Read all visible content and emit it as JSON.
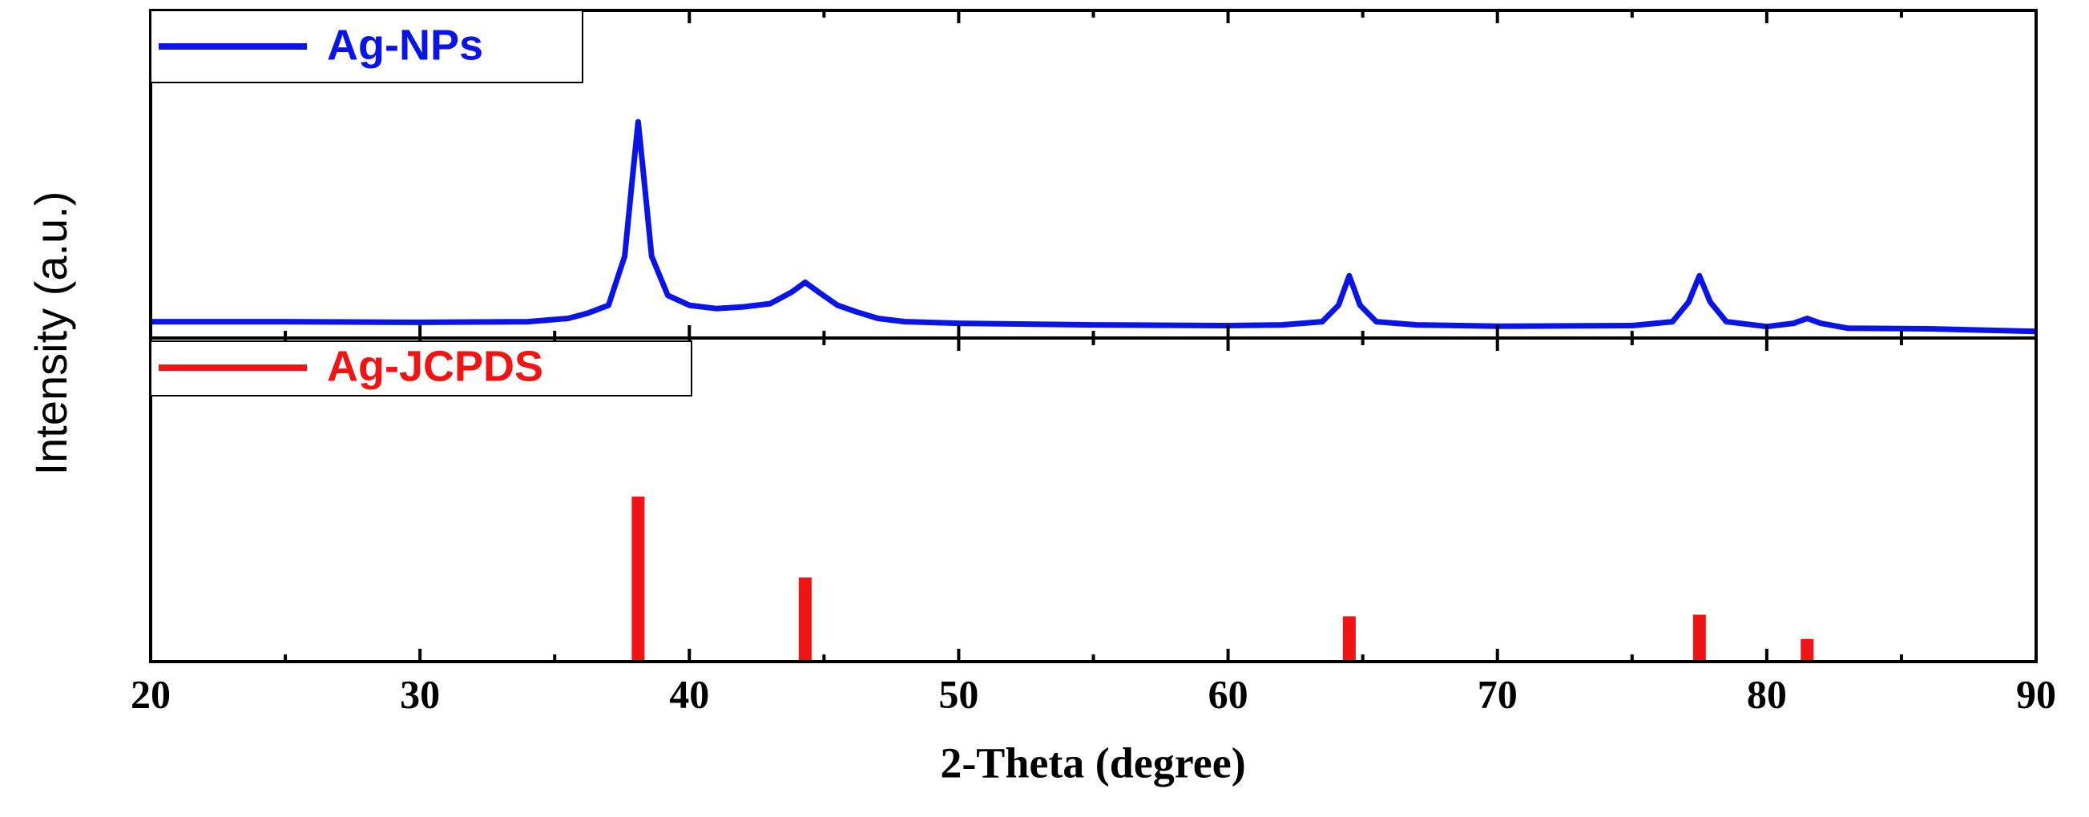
{
  "chart_data": [
    {
      "type": "line",
      "legend": "upper left",
      "ylabel": "Intensity (a.u.)",
      "xlim": [
        20,
        90
      ],
      "ylim": [
        0,
        100
      ],
      "x": [
        20,
        25,
        30,
        34,
        35.5,
        36.2,
        37.0,
        37.6,
        37.9,
        38.1,
        38.3,
        38.6,
        39.2,
        40,
        41,
        42,
        43,
        43.8,
        44.3,
        44.8,
        45.5,
        46.2,
        47,
        48,
        50,
        55,
        60,
        62,
        63.5,
        64.1,
        64.5,
        64.9,
        65.5,
        67,
        70,
        75,
        76.5,
        77.1,
        77.5,
        77.9,
        78.5,
        80,
        81,
        81.5,
        82,
        83,
        86,
        90
      ],
      "series": [
        {
          "name": "Ag-NPs",
          "color": "#0a14e6",
          "values": [
            5,
            5,
            4.8,
            5,
            6,
            7.5,
            10,
            25,
            50,
            66,
            50,
            25,
            13,
            10,
            9,
            9.5,
            10.5,
            14,
            17,
            14,
            10,
            8,
            6,
            5,
            4.5,
            4,
            3.8,
            4,
            5,
            10,
            19,
            10,
            5,
            4,
            3.6,
            3.8,
            5,
            11,
            19,
            11,
            5,
            3.5,
            4.5,
            6,
            4.5,
            3,
            2.8,
            2
          ]
        }
      ]
    },
    {
      "type": "bar",
      "legend": "upper left",
      "xlabel": "2-Theta (degree)",
      "xlim": [
        20,
        90
      ],
      "ylim": [
        0,
        100
      ],
      "xticks": [
        20,
        30,
        40,
        50,
        60,
        70,
        80,
        90
      ],
      "xminorticks": [
        25,
        35,
        45,
        55,
        65,
        75,
        85
      ],
      "x": [
        38.1,
        44.3,
        64.5,
        77.5,
        81.5
      ],
      "series": [
        {
          "name": "Ag-JCPDS",
          "color": "#f01414",
          "values": [
            51,
            26,
            14,
            14.5,
            7
          ]
        }
      ]
    }
  ]
}
